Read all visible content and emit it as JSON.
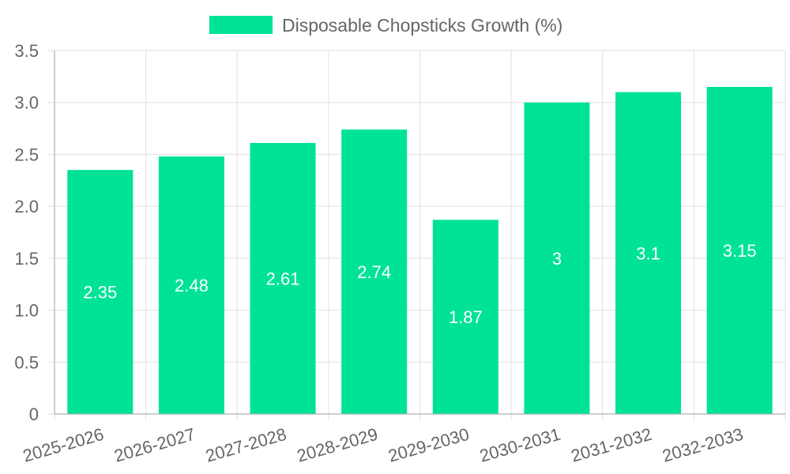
{
  "chart_data": {
    "type": "bar",
    "title": "",
    "xlabel": "",
    "ylabel": "",
    "categories": [
      "2025-2026",
      "2026-2027",
      "2027-2028",
      "2028-2029",
      "2029-2030",
      "2030-2031",
      "2031-2032",
      "2032-2033"
    ],
    "series": [
      {
        "name": "Disposable Chopsticks Growth (%)",
        "values": [
          2.35,
          2.48,
          2.61,
          2.74,
          1.87,
          3,
          3.1,
          3.15
        ],
        "data_labels": [
          "2.35",
          "2.48",
          "2.61",
          "2.74",
          "1.87",
          "3",
          "3.1",
          "3.15"
        ],
        "color": "#00e396"
      }
    ],
    "ylim": [
      0,
      3.5
    ],
    "y_ticks": [
      {
        "value": 0,
        "label": "0"
      },
      {
        "value": 0.5,
        "label": "0.5"
      },
      {
        "value": 1.0,
        "label": "1.0"
      },
      {
        "value": 1.5,
        "label": "1.5"
      },
      {
        "value": 2.0,
        "label": "2.0"
      },
      {
        "value": 2.5,
        "label": "2.5"
      },
      {
        "value": 3.0,
        "label": "3.0"
      },
      {
        "value": 3.5,
        "label": "3.5"
      }
    ],
    "grid": true,
    "legend_position": "top-center",
    "colors": {
      "grid": "#e0e0e0",
      "axis": "#9e9e9e",
      "tick_text": "#666666",
      "data_label": "#ffffff",
      "legend_text": "#666666"
    }
  }
}
